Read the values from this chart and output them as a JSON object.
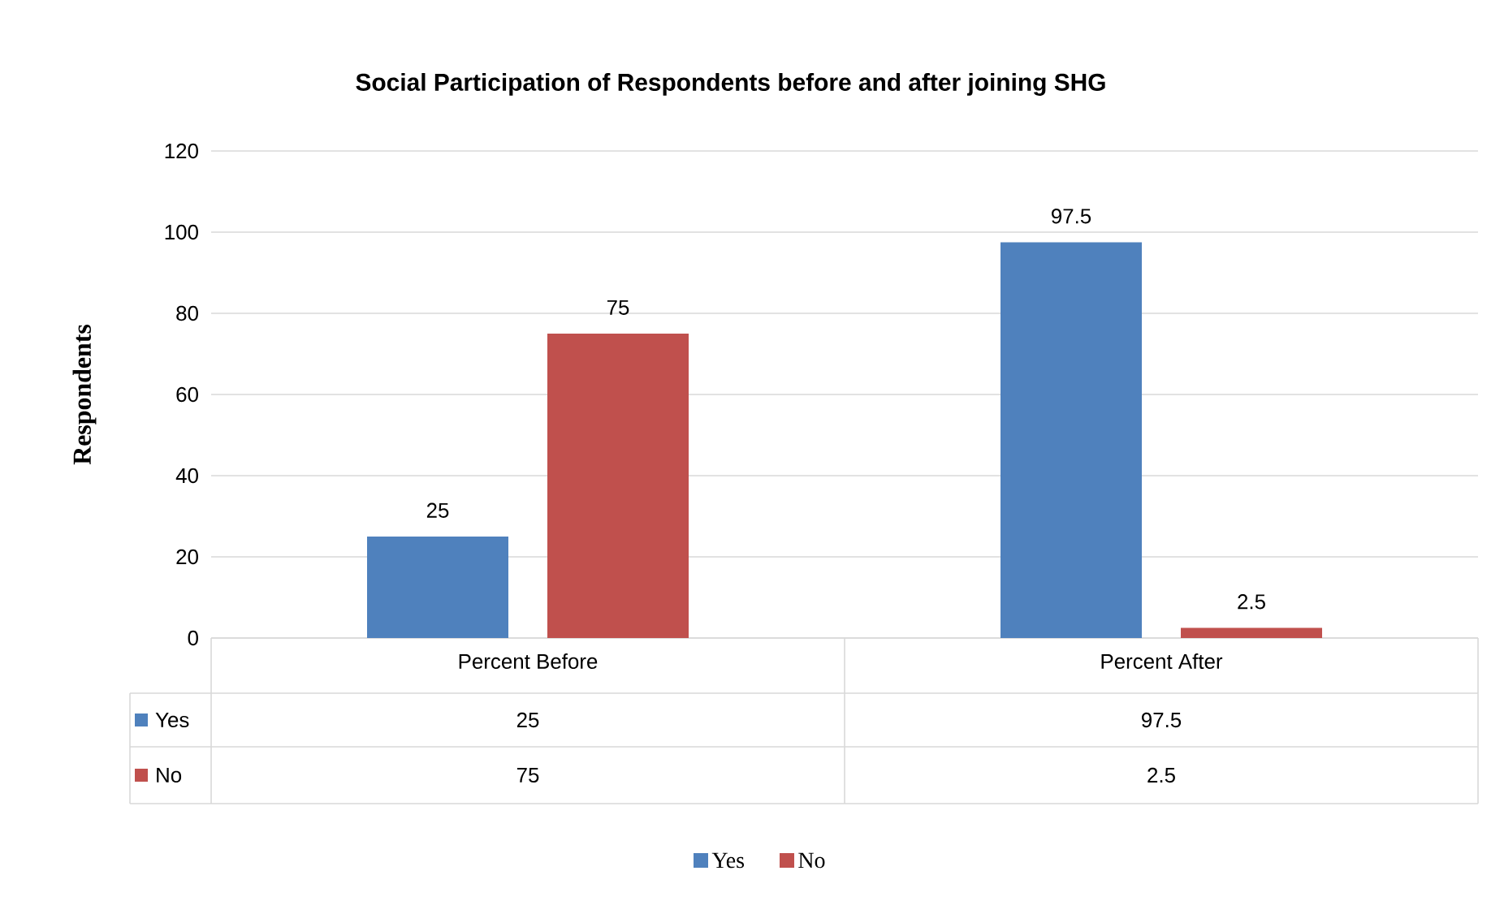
{
  "chart_data": {
    "type": "bar",
    "title": "Social Participation of Respondents before and after joining SHG",
    "ylabel": "Respondents",
    "categories": [
      "Percent Before",
      "Percent After"
    ],
    "series": [
      {
        "name": "Yes",
        "color": "#4f81bd",
        "values": [
          25,
          97.5
        ],
        "value_labels": [
          "25",
          "97.5"
        ]
      },
      {
        "name": "No",
        "color": "#c0504d",
        "values": [
          75,
          2.5
        ],
        "value_labels": [
          "75",
          "2.5"
        ]
      }
    ],
    "ylim": [
      0,
      120
    ],
    "yticks": [
      0,
      20,
      40,
      60,
      80,
      100,
      120
    ],
    "grid": "y",
    "legend": "bottom",
    "data_labels": true
  }
}
